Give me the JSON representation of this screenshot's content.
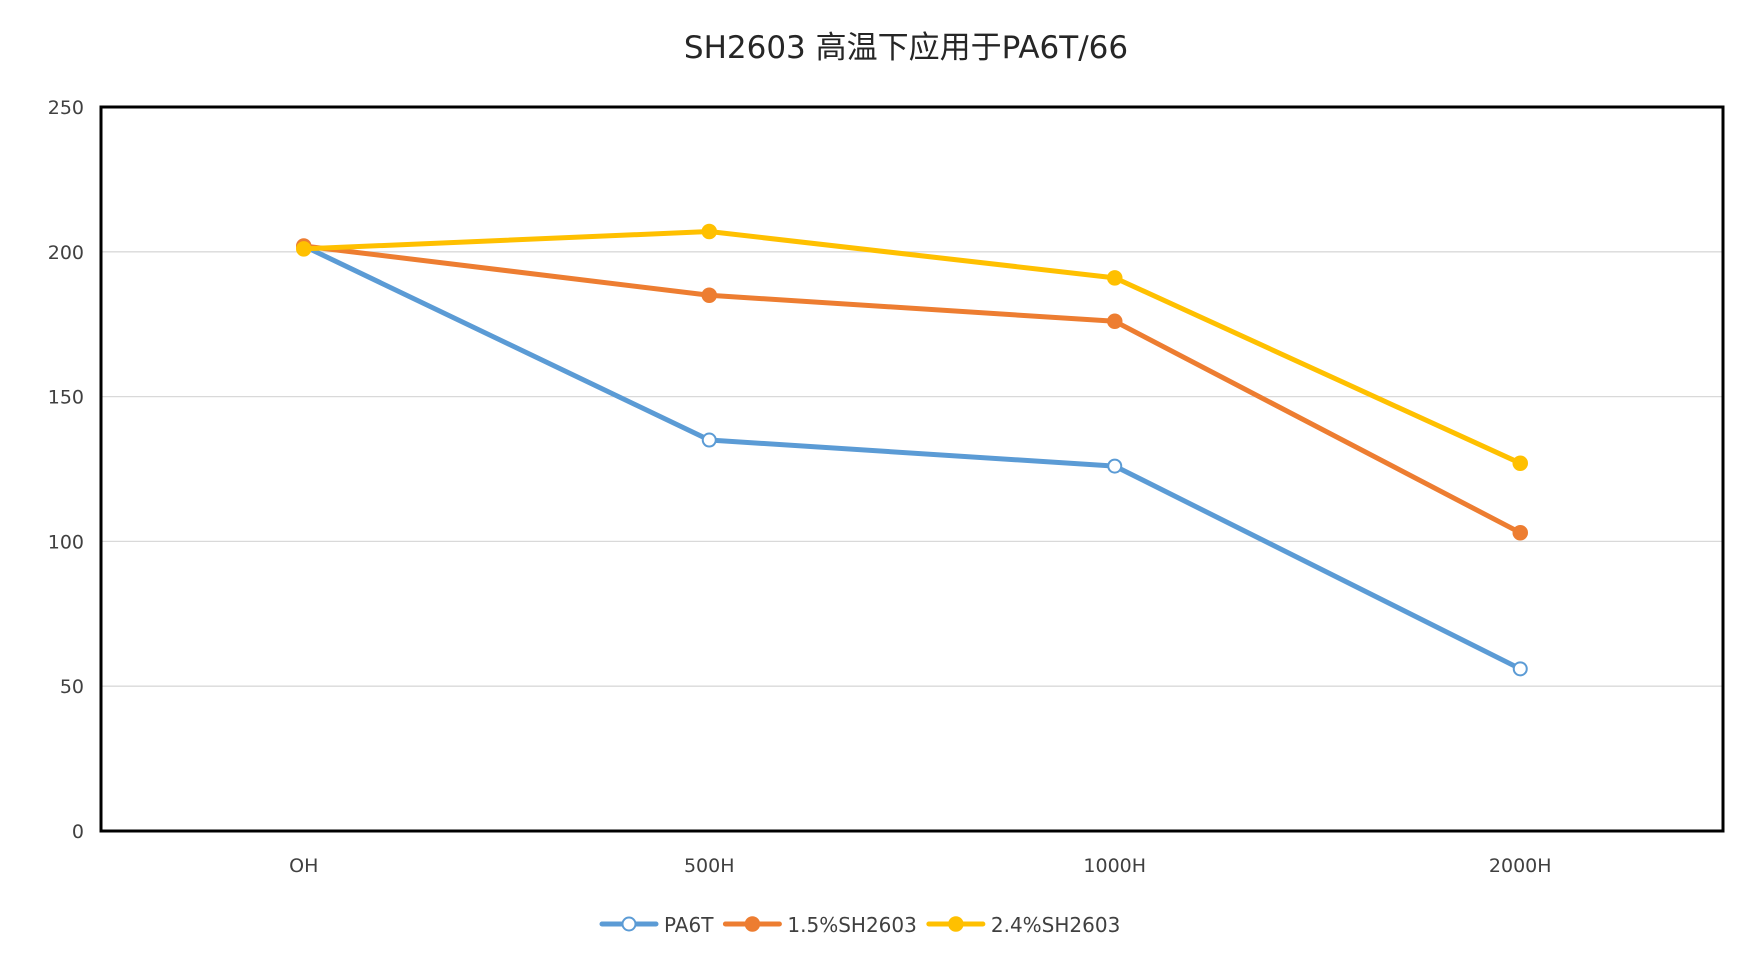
{
  "chart_data": {
    "type": "line",
    "title": "SH2603 高温下应用于PA6T/66",
    "xlabel": "",
    "ylabel": "",
    "categories": [
      "OH",
      "500H",
      "1000H",
      "2000H"
    ],
    "ylim": [
      0,
      250
    ],
    "yticks": [
      0,
      50,
      100,
      150,
      200,
      250
    ],
    "grid": true,
    "legend_position": "bottom",
    "series": [
      {
        "name": "PA6T",
        "values": [
          202,
          135,
          126,
          56
        ],
        "color": "#5b9bd5",
        "marker": "hollow-circle"
      },
      {
        "name": "1.5%SH2603",
        "values": [
          202,
          185,
          176,
          103
        ],
        "color": "#ed7d31",
        "marker": "filled-circle"
      },
      {
        "name": "2.4%SH2603",
        "values": [
          201,
          207,
          191,
          127
        ],
        "color": "#ffc000",
        "marker": "filled-circle"
      }
    ]
  }
}
